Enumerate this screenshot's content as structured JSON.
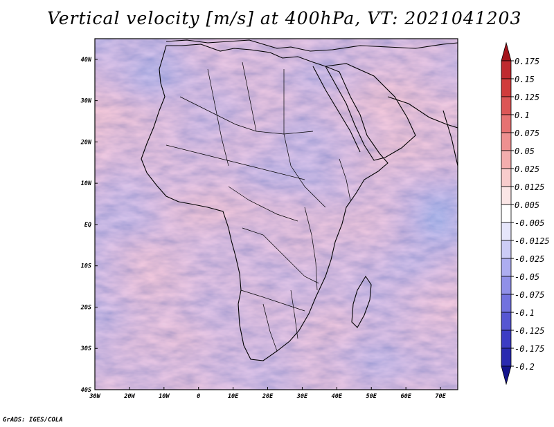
{
  "title": "Vertical velocity [m/s] at 400hPa, VT: 2021041203",
  "credit": "GrADS: IGES/COLA",
  "map": {
    "lat_range": [
      -40,
      45
    ],
    "lon_range": [
      -30,
      75
    ],
    "lat_ticks": [
      "40N",
      "30N",
      "20N",
      "10N",
      "EQ",
      "10S",
      "20S",
      "30S",
      "40S"
    ],
    "lon_ticks": [
      "30W",
      "20W",
      "10W",
      "0",
      "10E",
      "20E",
      "30E",
      "40E",
      "50E",
      "60E",
      "70E"
    ],
    "field": "vertical velocity",
    "units": "m/s",
    "level": "400hPa"
  },
  "colorbar": {
    "labels": [
      "0.175",
      "0.15",
      "0.125",
      "0.1",
      "0.075",
      "0.05",
      "0.025",
      "0.0125",
      "0.005",
      "-0.005",
      "-0.0125",
      "-0.025",
      "-0.05",
      "-0.075",
      "-0.1",
      "-0.125",
      "-0.175",
      "-0.2"
    ],
    "colors": [
      "#a4141c",
      "#bf2a2f",
      "#d03c3c",
      "#dc5656",
      "#e67272",
      "#ee9090",
      "#f3adad",
      "#f8cccc",
      "#fbe6e6",
      "#ffffff",
      "#e6e6fb",
      "#ccccf6",
      "#adadf0",
      "#9090e8",
      "#7272de",
      "#5656d2",
      "#3c3cc4",
      "#2a2ab0",
      "#14148c"
    ]
  }
}
